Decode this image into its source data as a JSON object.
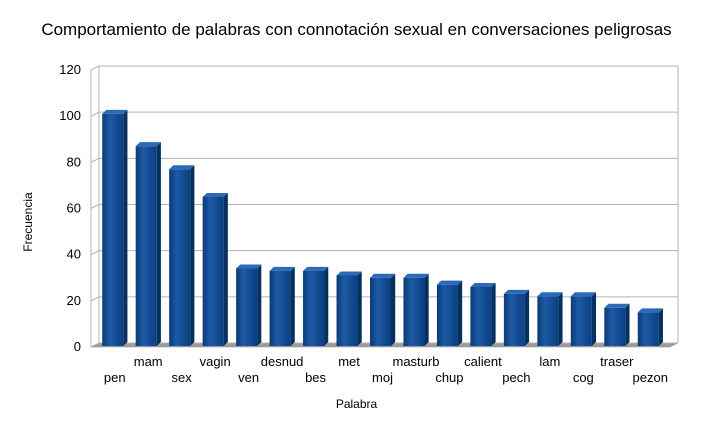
{
  "chart_data": {
    "type": "bar",
    "title": "Comportamiento de palabras con connotación sexual en conversaciones peligrosas",
    "xlabel": "Palabra",
    "ylabel": "Frecuencia",
    "ylim": [
      0,
      120
    ],
    "yticks": [
      0,
      20,
      40,
      60,
      80,
      100,
      120
    ],
    "grid": true,
    "categories": [
      "pen",
      "mam",
      "sex",
      "vagin",
      "ven",
      "desnud",
      "bes",
      "met",
      "moj",
      "masturb",
      "chup",
      "calient",
      "pech",
      "lam",
      "cog",
      "traser",
      "pezon"
    ],
    "values": [
      101,
      87,
      77,
      65,
      34,
      33,
      33,
      31,
      30,
      30,
      27,
      26,
      23,
      22,
      22,
      17,
      15
    ],
    "bar_color": "#0d4a8f"
  }
}
